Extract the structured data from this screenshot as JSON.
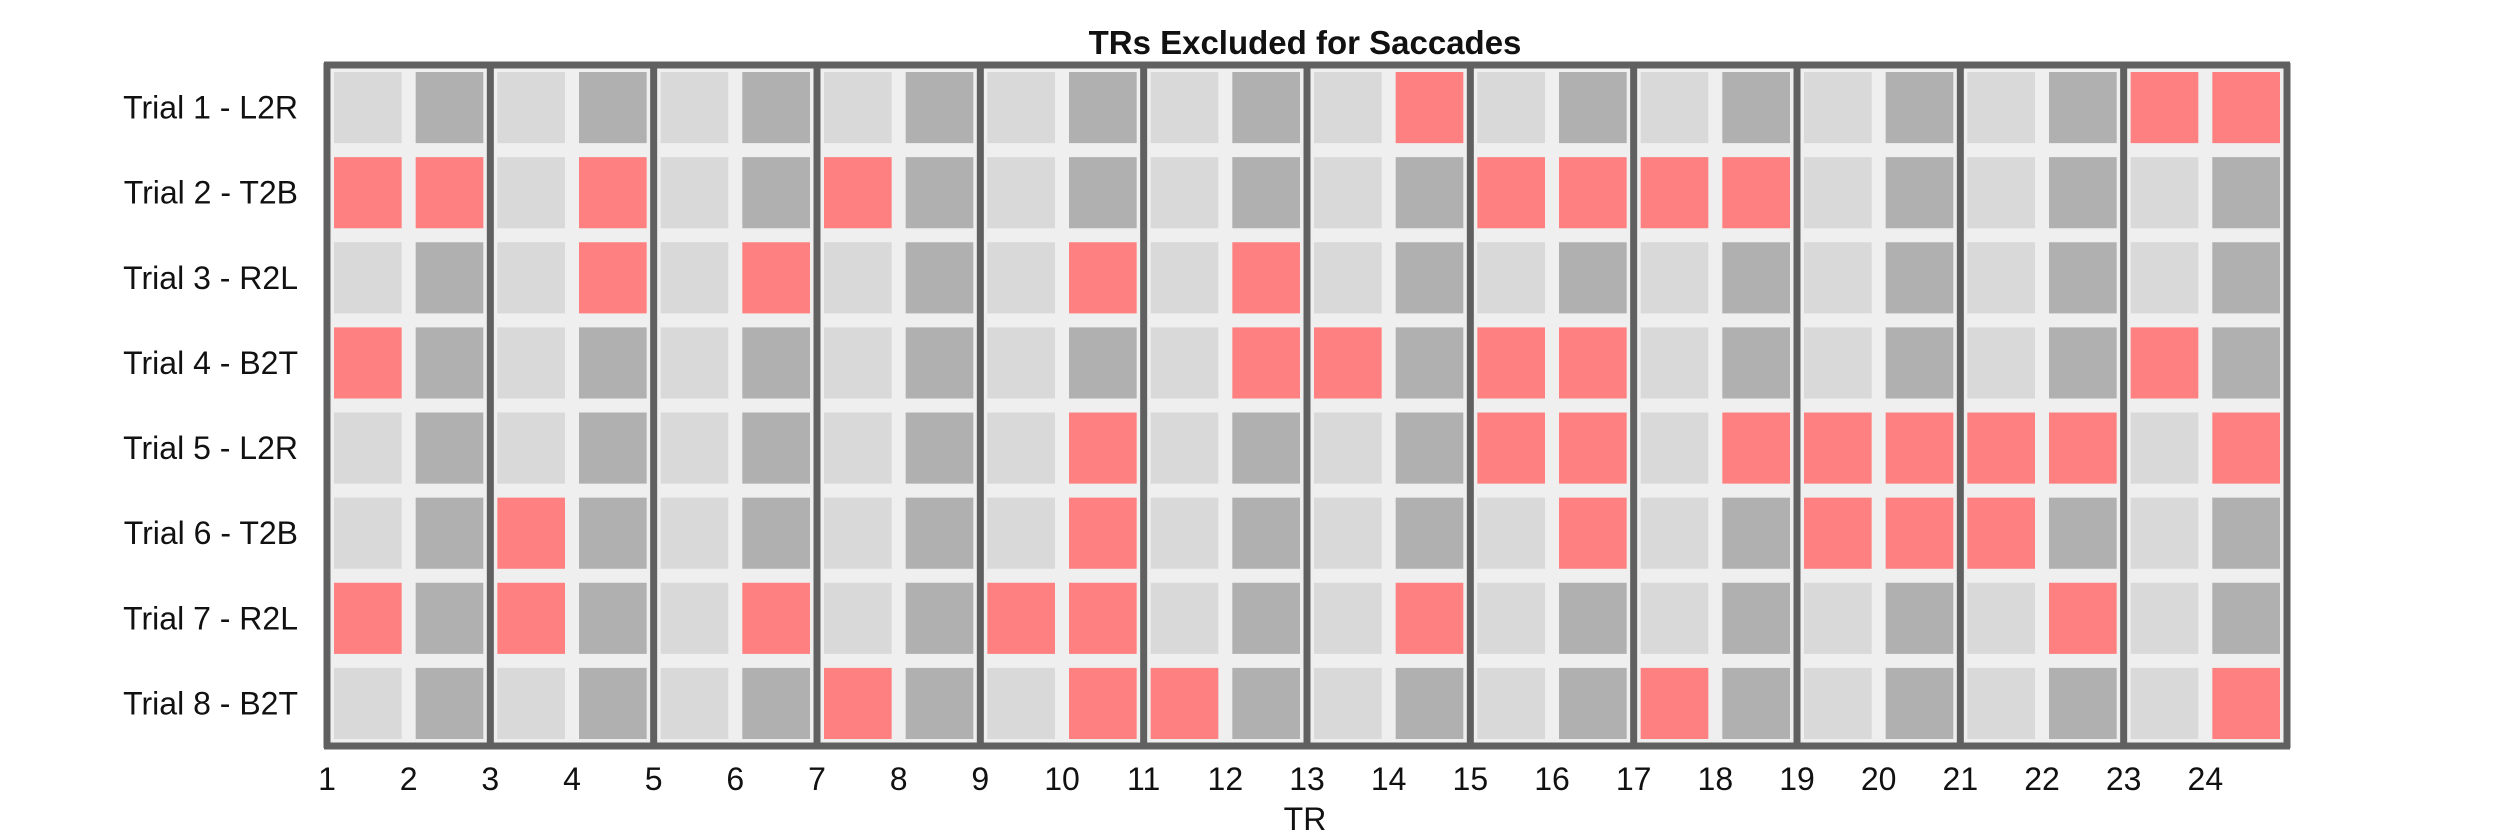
{
  "chart_data": {
    "type": "heatmap",
    "title": "TRs Excluded for Saccades",
    "xlabel": "TR",
    "ylabel": "",
    "rows": [
      "Trial 1 - L2R",
      "Trial 2 - T2B",
      "Trial 3 - R2L",
      "Trial 4 - B2T",
      "Trial 5 - L2R",
      "Trial 6 - T2B",
      "Trial 7 - R2L",
      "Trial 8 - B2T"
    ],
    "x_ticks": [
      "1",
      "2",
      "3",
      "4",
      "5",
      "6",
      "7",
      "8",
      "9",
      "10",
      "11",
      "12",
      "13",
      "14",
      "15",
      "16",
      "17",
      "18",
      "19",
      "20",
      "21",
      "22",
      "23",
      "24"
    ],
    "n_columns": 24,
    "excluded": [
      [
        0,
        0,
        0,
        0,
        0,
        0,
        0,
        0,
        0,
        0,
        0,
        0,
        0,
        1,
        0,
        0,
        0,
        0,
        0,
        0,
        0,
        0,
        1,
        1
      ],
      [
        1,
        1,
        0,
        1,
        0,
        0,
        1,
        0,
        0,
        0,
        0,
        0,
        0,
        0,
        1,
        1,
        1,
        1,
        0,
        0,
        0,
        0,
        0,
        0
      ],
      [
        0,
        0,
        0,
        1,
        0,
        1,
        0,
        0,
        0,
        1,
        0,
        1,
        0,
        0,
        0,
        0,
        0,
        0,
        0,
        0,
        0,
        0,
        0,
        0
      ],
      [
        1,
        0,
        0,
        0,
        0,
        0,
        0,
        0,
        0,
        0,
        0,
        1,
        1,
        0,
        1,
        1,
        0,
        0,
        0,
        0,
        0,
        0,
        1,
        0
      ],
      [
        0,
        0,
        0,
        0,
        0,
        0,
        0,
        0,
        0,
        1,
        0,
        0,
        0,
        0,
        1,
        1,
        0,
        1,
        1,
        1,
        1,
        1,
        0,
        1
      ],
      [
        0,
        0,
        1,
        0,
        0,
        0,
        0,
        0,
        0,
        1,
        0,
        0,
        0,
        0,
        0,
        1,
        0,
        0,
        1,
        1,
        1,
        0,
        0,
        0
      ],
      [
        1,
        0,
        1,
        0,
        0,
        1,
        0,
        0,
        1,
        1,
        0,
        0,
        0,
        1,
        0,
        0,
        0,
        0,
        0,
        0,
        0,
        1,
        0,
        0
      ],
      [
        0,
        0,
        0,
        0,
        0,
        0,
        1,
        0,
        0,
        1,
        1,
        0,
        0,
        0,
        0,
        0,
        1,
        0,
        0,
        0,
        0,
        0,
        0,
        1
      ]
    ],
    "colors": {
      "excluded": "#ff8080",
      "odd_column": "#d9d9d9",
      "even_column": "#b0b0b0",
      "gridline": "#efefef",
      "trial_divider": "#606060"
    }
  }
}
